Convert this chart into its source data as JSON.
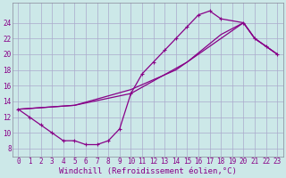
{
  "background_color": "#cce8e8",
  "grid_color": "#aaaacc",
  "line_color": "#880088",
  "xlim": [
    -0.5,
    23.5
  ],
  "ylim": [
    7,
    26.5
  ],
  "xticks": [
    0,
    1,
    2,
    3,
    4,
    5,
    6,
    7,
    8,
    9,
    10,
    11,
    12,
    13,
    14,
    15,
    16,
    17,
    18,
    19,
    20,
    21,
    22,
    23
  ],
  "yticks": [
    8,
    10,
    12,
    14,
    16,
    18,
    20,
    22,
    24
  ],
  "xlabel": "Windchill (Refroidissement éolien,°C)",
  "font_color": "#880088",
  "tick_fontsize": 5.5,
  "label_fontsize": 6.5,
  "loop_x": [
    0,
    1,
    2,
    3,
    4,
    5,
    6,
    7,
    8,
    9,
    10,
    11,
    12,
    13,
    14,
    15,
    16,
    17,
    18,
    20,
    21,
    22,
    23
  ],
  "loop_y": [
    13,
    12,
    11,
    10,
    9,
    9,
    8.5,
    8.5,
    9,
    10.5,
    15,
    17.5,
    19,
    20.5,
    22,
    23.5,
    25,
    25.5,
    24.5,
    24,
    22,
    21,
    20
  ],
  "diag1_x": [
    0,
    5,
    10,
    14,
    16,
    17,
    18,
    20,
    21,
    22,
    23
  ],
  "diag1_y": [
    13,
    13.5,
    15.5,
    18,
    20,
    21,
    22,
    24,
    22,
    21,
    20
  ],
  "diag2_x": [
    0,
    5,
    10,
    15,
    18,
    20,
    21,
    22,
    23
  ],
  "diag2_y": [
    13,
    13.5,
    15,
    19,
    22.5,
    24,
    22,
    21,
    20
  ]
}
